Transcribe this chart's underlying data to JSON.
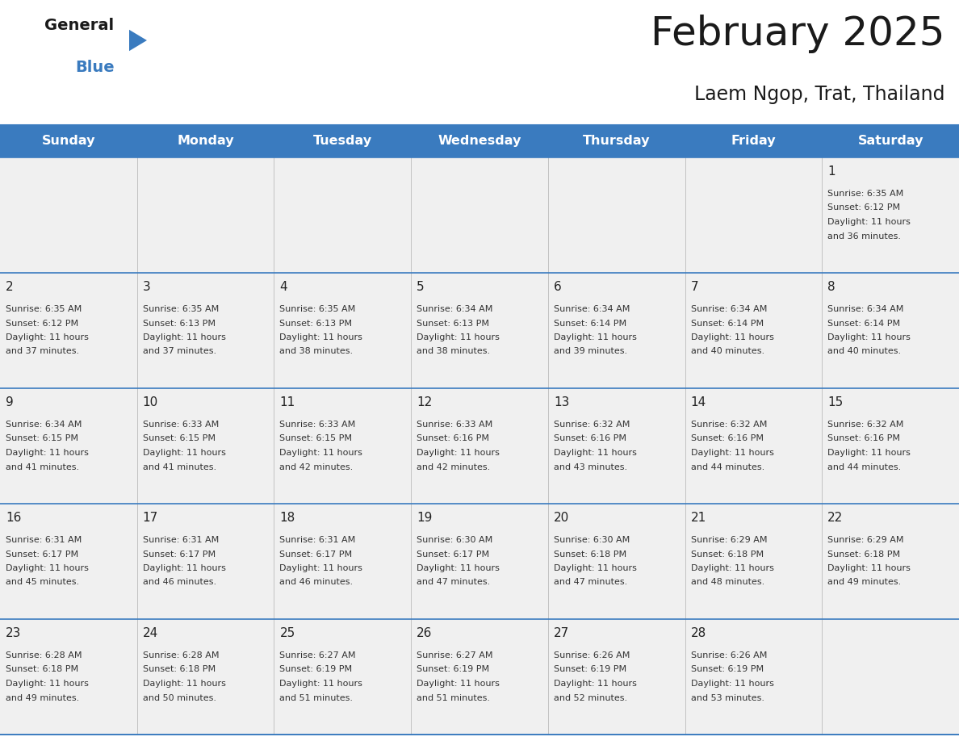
{
  "title": "February 2025",
  "subtitle": "Laem Ngop, Trat, Thailand",
  "header_bg": "#3a7bbf",
  "header_text_color": "#ffffff",
  "day_headers": [
    "Sunday",
    "Monday",
    "Tuesday",
    "Wednesday",
    "Thursday",
    "Friday",
    "Saturday"
  ],
  "cell_bg_light": "#f0f0f0",
  "cell_bg_white": "#ffffff",
  "border_color": "#3a7bbf",
  "day_num_color": "#222222",
  "text_color": "#333333",
  "logo_general_color": "#1a1a1a",
  "logo_blue_color": "#3a7bbf",
  "logo_triangle_color": "#3a7bbf",
  "calendar": [
    [
      null,
      null,
      null,
      null,
      null,
      null,
      {
        "day": 1,
        "sunrise": "6:35 AM",
        "sunset": "6:12 PM",
        "daylight_extra": "36 minutes."
      }
    ],
    [
      {
        "day": 2,
        "sunrise": "6:35 AM",
        "sunset": "6:12 PM",
        "daylight_extra": "37 minutes."
      },
      {
        "day": 3,
        "sunrise": "6:35 AM",
        "sunset": "6:13 PM",
        "daylight_extra": "37 minutes."
      },
      {
        "day": 4,
        "sunrise": "6:35 AM",
        "sunset": "6:13 PM",
        "daylight_extra": "38 minutes."
      },
      {
        "day": 5,
        "sunrise": "6:34 AM",
        "sunset": "6:13 PM",
        "daylight_extra": "38 minutes."
      },
      {
        "day": 6,
        "sunrise": "6:34 AM",
        "sunset": "6:14 PM",
        "daylight_extra": "39 minutes."
      },
      {
        "day": 7,
        "sunrise": "6:34 AM",
        "sunset": "6:14 PM",
        "daylight_extra": "40 minutes."
      },
      {
        "day": 8,
        "sunrise": "6:34 AM",
        "sunset": "6:14 PM",
        "daylight_extra": "40 minutes."
      }
    ],
    [
      {
        "day": 9,
        "sunrise": "6:34 AM",
        "sunset": "6:15 PM",
        "daylight_extra": "41 minutes."
      },
      {
        "day": 10,
        "sunrise": "6:33 AM",
        "sunset": "6:15 PM",
        "daylight_extra": "41 minutes."
      },
      {
        "day": 11,
        "sunrise": "6:33 AM",
        "sunset": "6:15 PM",
        "daylight_extra": "42 minutes."
      },
      {
        "day": 12,
        "sunrise": "6:33 AM",
        "sunset": "6:16 PM",
        "daylight_extra": "42 minutes."
      },
      {
        "day": 13,
        "sunrise": "6:32 AM",
        "sunset": "6:16 PM",
        "daylight_extra": "43 minutes."
      },
      {
        "day": 14,
        "sunrise": "6:32 AM",
        "sunset": "6:16 PM",
        "daylight_extra": "44 minutes."
      },
      {
        "day": 15,
        "sunrise": "6:32 AM",
        "sunset": "6:16 PM",
        "daylight_extra": "44 minutes."
      }
    ],
    [
      {
        "day": 16,
        "sunrise": "6:31 AM",
        "sunset": "6:17 PM",
        "daylight_extra": "45 minutes."
      },
      {
        "day": 17,
        "sunrise": "6:31 AM",
        "sunset": "6:17 PM",
        "daylight_extra": "46 minutes."
      },
      {
        "day": 18,
        "sunrise": "6:31 AM",
        "sunset": "6:17 PM",
        "daylight_extra": "46 minutes."
      },
      {
        "day": 19,
        "sunrise": "6:30 AM",
        "sunset": "6:17 PM",
        "daylight_extra": "47 minutes."
      },
      {
        "day": 20,
        "sunrise": "6:30 AM",
        "sunset": "6:18 PM",
        "daylight_extra": "47 minutes."
      },
      {
        "day": 21,
        "sunrise": "6:29 AM",
        "sunset": "6:18 PM",
        "daylight_extra": "48 minutes."
      },
      {
        "day": 22,
        "sunrise": "6:29 AM",
        "sunset": "6:18 PM",
        "daylight_extra": "49 minutes."
      }
    ],
    [
      {
        "day": 23,
        "sunrise": "6:28 AM",
        "sunset": "6:18 PM",
        "daylight_extra": "49 minutes."
      },
      {
        "day": 24,
        "sunrise": "6:28 AM",
        "sunset": "6:18 PM",
        "daylight_extra": "50 minutes."
      },
      {
        "day": 25,
        "sunrise": "6:27 AM",
        "sunset": "6:19 PM",
        "daylight_extra": "51 minutes."
      },
      {
        "day": 26,
        "sunrise": "6:27 AM",
        "sunset": "6:19 PM",
        "daylight_extra": "51 minutes."
      },
      {
        "day": 27,
        "sunrise": "6:26 AM",
        "sunset": "6:19 PM",
        "daylight_extra": "52 minutes."
      },
      {
        "day": 28,
        "sunrise": "6:26 AM",
        "sunset": "6:19 PM",
        "daylight_extra": "53 minutes."
      },
      null
    ]
  ]
}
